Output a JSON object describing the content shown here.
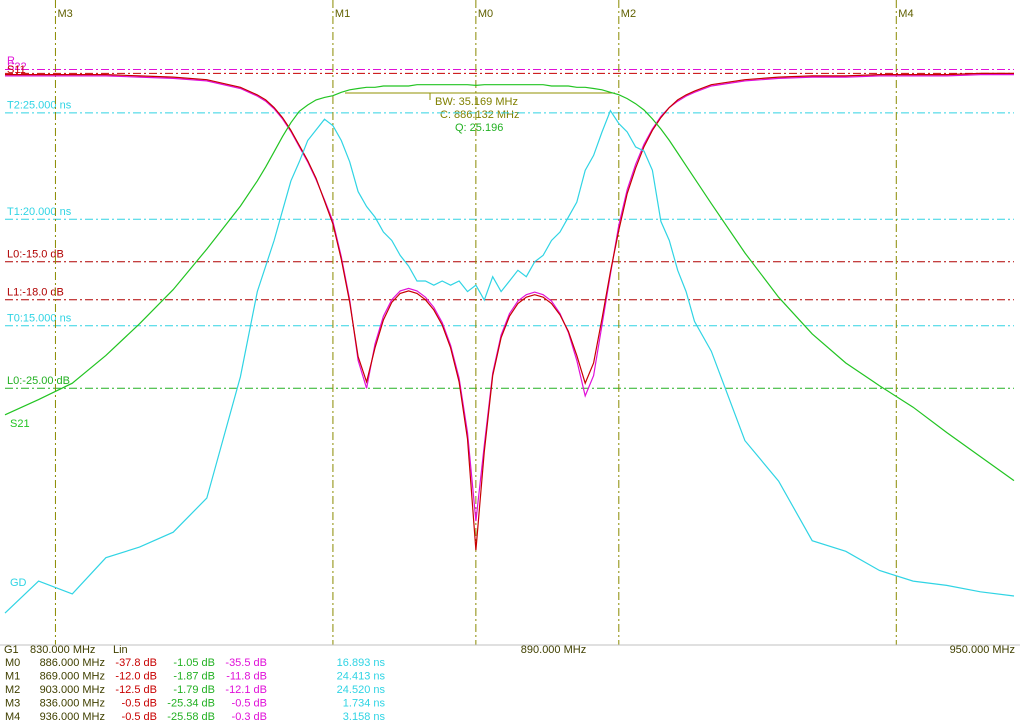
{
  "chart_data": {
    "type": "line",
    "reference_label": "R",
    "x": [
      830,
      834,
      838,
      842,
      846,
      850,
      854,
      858,
      860,
      861,
      862,
      863,
      864,
      865,
      866,
      867,
      868,
      869,
      870,
      871,
      872,
      873,
      874,
      875,
      876,
      877,
      878,
      879,
      880,
      881,
      882,
      883,
      884,
      885,
      886,
      887,
      888,
      889,
      890,
      891,
      892,
      893,
      894,
      895,
      896,
      897,
      898,
      899,
      900,
      901,
      902,
      903,
      904,
      905,
      906,
      907,
      908,
      909,
      910,
      911,
      912,
      914,
      918,
      922,
      926,
      930,
      934,
      938,
      942,
      946,
      950
    ],
    "xlim": [
      830,
      950
    ],
    "xticks": [
      {
        "value": 830,
        "label": "830.000 MHz"
      },
      {
        "value": 890,
        "label": "890.000 MHz"
      },
      {
        "value": 950,
        "label": "950.000 MHz"
      }
    ],
    "ylim": [
      -45.3,
      5.7
    ],
    "y2lim": [
      0,
      30.3
    ],
    "series": [
      {
        "name": "S22",
        "color": "#e010d8",
        "values": [
          -0.3,
          -0.3,
          -0.3,
          -0.3,
          -0.4,
          -0.5,
          -0.7,
          -1.3,
          -1.9,
          -2.3,
          -2.9,
          -3.7,
          -4.7,
          -5.9,
          -7.1,
          -8.5,
          -10.1,
          -11.8,
          -14.6,
          -18.0,
          -22.8,
          -25.0,
          -21.5,
          -19.3,
          -18.0,
          -17.3,
          -17.1,
          -17.3,
          -17.8,
          -18.6,
          -19.8,
          -21.6,
          -24.2,
          -28.5,
          -35.5,
          -29.5,
          -23.8,
          -20.8,
          -19.1,
          -18.1,
          -17.6,
          -17.4,
          -17.6,
          -18.1,
          -19.1,
          -20.6,
          -22.8,
          -25.6,
          -24.0,
          -20.0,
          -16.0,
          -12.1,
          -9.3,
          -7.3,
          -5.7,
          -4.5,
          -3.5,
          -2.8,
          -2.3,
          -1.9,
          -1.6,
          -1.1,
          -0.7,
          -0.5,
          -0.4,
          -0.4,
          -0.3,
          -0.3,
          -0.3,
          -0.2,
          -0.2
        ]
      },
      {
        "name": "S11",
        "color": "#c80000",
        "values": [
          -0.2,
          -0.2,
          -0.2,
          -0.2,
          -0.3,
          -0.4,
          -0.6,
          -1.2,
          -1.8,
          -2.2,
          -2.8,
          -3.6,
          -4.6,
          -5.8,
          -7.0,
          -8.4,
          -10.2,
          -12.0,
          -14.8,
          -18.2,
          -22.5,
          -24.5,
          -21.8,
          -19.6,
          -18.2,
          -17.5,
          -17.3,
          -17.5,
          -18.0,
          -18.8,
          -20.0,
          -21.8,
          -24.5,
          -29.0,
          -37.8,
          -30.0,
          -24.0,
          -21.0,
          -19.3,
          -18.3,
          -17.8,
          -17.6,
          -17.8,
          -18.3,
          -19.2,
          -20.5,
          -22.4,
          -24.6,
          -23.0,
          -19.5,
          -15.8,
          -12.5,
          -9.6,
          -7.6,
          -5.9,
          -4.6,
          -3.6,
          -2.8,
          -2.2,
          -1.8,
          -1.5,
          -1.0,
          -0.6,
          -0.4,
          -0.3,
          -0.3,
          -0.2,
          -0.2,
          -0.2,
          -0.1,
          -0.1
        ]
      },
      {
        "name": "S21",
        "color": "#22c422",
        "values": [
          -27.1,
          -25.9,
          -24.6,
          -22.4,
          -19.9,
          -17.2,
          -14.0,
          -10.6,
          -8.6,
          -7.5,
          -6.3,
          -5.1,
          -4.0,
          -3.1,
          -2.6,
          -2.2,
          -2.0,
          -1.87,
          -1.6,
          -1.4,
          -1.3,
          -1.2,
          -1.2,
          -1.1,
          -1.1,
          -1.1,
          -1.1,
          -1.0,
          -1.0,
          -1.0,
          -1.0,
          -1.0,
          -1.0,
          -1.0,
          -1.05,
          -1.0,
          -1.0,
          -1.0,
          -1.0,
          -1.0,
          -1.0,
          -1.0,
          -1.0,
          -1.1,
          -1.1,
          -1.1,
          -1.2,
          -1.2,
          -1.3,
          -1.4,
          -1.6,
          -1.79,
          -2.1,
          -2.5,
          -3.0,
          -3.7,
          -4.5,
          -5.4,
          -6.4,
          -7.4,
          -8.4,
          -10.4,
          -14.3,
          -17.8,
          -20.7,
          -23.0,
          -24.8,
          -26.5,
          -28.5,
          -30.4,
          -32.3
        ]
      },
      {
        "name": "GD",
        "color": "#30d4e4",
        "axis": "y2",
        "values": [
          1.5,
          3.0,
          2.4,
          4.1,
          4.6,
          5.3,
          6.9,
          12.6,
          16.6,
          17.8,
          19.0,
          20.4,
          21.8,
          22.7,
          23.7,
          24.2,
          24.7,
          24.4,
          23.7,
          22.7,
          21.3,
          20.6,
          20.1,
          19.4,
          19.0,
          18.3,
          17.8,
          17.1,
          17.1,
          16.9,
          17.1,
          16.9,
          17.1,
          16.6,
          16.9,
          16.2,
          17.3,
          16.6,
          17.1,
          17.6,
          17.3,
          18.0,
          18.3,
          19.0,
          19.4,
          20.1,
          20.8,
          22.3,
          23.0,
          24.1,
          25.1,
          24.5,
          24.1,
          23.4,
          23.2,
          22.3,
          19.9,
          19.0,
          17.6,
          16.6,
          15.2,
          13.8,
          9.6,
          7.7,
          4.9,
          4.4,
          3.5,
          3.0,
          2.8,
          2.5,
          2.3
        ]
      }
    ],
    "ref_lines": [
      {
        "value": 0.2,
        "color": "#e010d8"
      },
      {
        "value": -0.1,
        "color": "#c80000"
      },
      {
        "label": "T2:25.000 ns",
        "value": 25,
        "axis": "y2",
        "color": "#30d4e4"
      },
      {
        "label": "T1:20.000 ns",
        "value": 20,
        "axis": "y2",
        "color": "#30d4e4"
      },
      {
        "label": "L0:-15.0 dB",
        "value": -15,
        "color": "#b00000"
      },
      {
        "label": "L1:-18.0 dB",
        "value": -18,
        "color": "#b00000"
      },
      {
        "label": "T0:15.000 ns",
        "value": 15,
        "axis": "y2",
        "color": "#30d4e4"
      },
      {
        "label": "L0:-25.00 dB",
        "value": -25,
        "color": "#22b022"
      }
    ],
    "markers": [
      {
        "label": "M3",
        "x": 836
      },
      {
        "label": "M1",
        "x": 869
      },
      {
        "label": "M0",
        "x": 886
      },
      {
        "label": "M2",
        "x": 903
      },
      {
        "label": "M4",
        "x": 936
      }
    ],
    "annotations": [
      "BW: 35.169 MHz",
      "C: 886.132 MHz",
      "Q: 25.196"
    ],
    "channel": "G1",
    "scale": "Lin"
  },
  "marker_table": {
    "rows": [
      [
        "M0",
        "886.000 MHz",
        "-37.8 dB",
        "-1.05 dB",
        "-35.5 dB",
        "16.893 ns"
      ],
      [
        "M1",
        "869.000 MHz",
        "-12.0 dB",
        "-1.87 dB",
        "-11.8 dB",
        "24.413 ns"
      ],
      [
        "M2",
        "903.000 MHz",
        "-12.5 dB",
        "-1.79 dB",
        "-12.1 dB",
        "24.520 ns"
      ],
      [
        "M3",
        "836.000 MHz",
        "-0.5 dB",
        "-25.34 dB",
        "-0.5 dB",
        "1.734 ns"
      ],
      [
        "M4",
        "936.000 MHz",
        "-0.5 dB",
        "-25.58 dB",
        "-0.3 dB",
        "3.158 ns"
      ]
    ]
  }
}
